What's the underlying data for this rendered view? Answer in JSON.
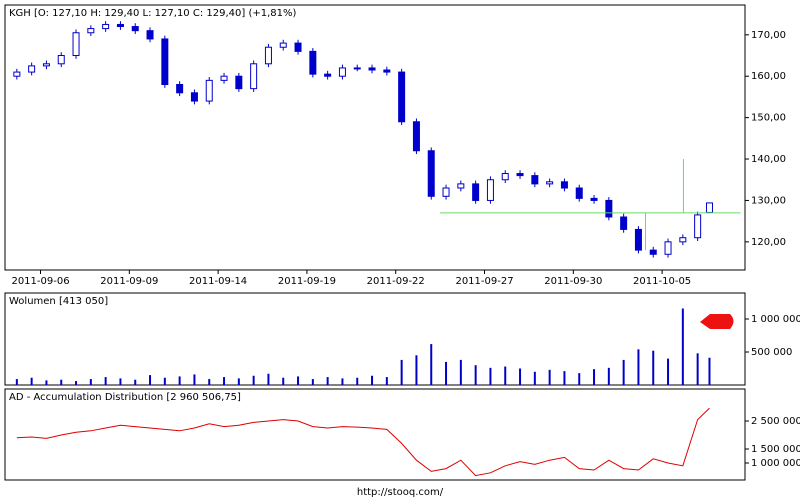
{
  "chart_data": [
    {
      "type": "candlestick",
      "title": "KGH [O: 127,10  H: 129,40  L: 127,10  C: 129,40]  (+1,81%)",
      "color": "#0000cc",
      "x": [
        -0.8,
        -0.3,
        0.2,
        0.7,
        1.2,
        1.7,
        2.2,
        2.7,
        3.2,
        3.7,
        4.2,
        4.7,
        5.2,
        5.7,
        6.2,
        6.7,
        7.2,
        7.7,
        8.2,
        8.7,
        9.2,
        9.7,
        10.2,
        10.7,
        11.2,
        11.7,
        12.2,
        12.7,
        13.2,
        13.7,
        14.2,
        14.7,
        15.2,
        15.7,
        16.2,
        16.7,
        17.2,
        17.7,
        18.2,
        18.7,
        19.2,
        19.7,
        20.2,
        20.7,
        21.2,
        21.7,
        22.2,
        22.6
      ],
      "open": [
        160,
        161,
        162.5,
        163,
        165,
        170.5,
        171.5,
        172.5,
        172,
        171,
        169,
        158,
        156,
        154,
        159,
        160,
        157,
        163,
        167,
        168,
        166,
        160.5,
        160,
        162,
        162,
        161.5,
        161,
        149,
        142,
        131,
        133,
        134,
        130,
        135,
        136.5,
        136,
        134,
        134.5,
        133,
        130.5,
        130,
        126,
        123,
        118,
        117,
        120,
        121,
        127.1
      ],
      "high": [
        161.8,
        163.3,
        163.8,
        165.8,
        171.3,
        172.3,
        173.3,
        173.3,
        172.8,
        171.8,
        169.8,
        158.8,
        156.8,
        159.8,
        160.8,
        160.8,
        163.8,
        167.8,
        168.8,
        168.8,
        166.8,
        161.3,
        162.8,
        162.8,
        162.8,
        162.3,
        161.8,
        149.8,
        142.8,
        133.8,
        134.8,
        134.8,
        135.8,
        137.3,
        137.3,
        136.8,
        135.3,
        135.3,
        133.8,
        131.3,
        130.8,
        126.8,
        123.8,
        118.8,
        120.8,
        121.8,
        127.3,
        129.4
      ],
      "low": [
        159.2,
        160.2,
        161.7,
        162.2,
        164.2,
        169.7,
        170.7,
        171.2,
        170.2,
        168.2,
        157.2,
        155.2,
        153.2,
        153.2,
        158.2,
        156.2,
        156.2,
        162.2,
        166.2,
        165.2,
        159.7,
        159.2,
        159.2,
        161.2,
        160.7,
        160.2,
        148.2,
        141.2,
        130.2,
        130.2,
        132.2,
        129.2,
        129.2,
        134.2,
        135.2,
        133.2,
        133.2,
        132.2,
        129.7,
        129.2,
        125.2,
        122.2,
        117.2,
        116.2,
        116.2,
        119.2,
        120.2,
        127.1
      ],
      "close": [
        161,
        162.5,
        163,
        165,
        170.5,
        171.5,
        172.5,
        172,
        171,
        169,
        158,
        156,
        154,
        159,
        160,
        157,
        163,
        167,
        168,
        166,
        160.5,
        160,
        162,
        162,
        161.5,
        161,
        149,
        142,
        131,
        133,
        134,
        130,
        135,
        136.5,
        136,
        134,
        134.5,
        133,
        130.5,
        130,
        126,
        123,
        118,
        117,
        120,
        121,
        126.5,
        129.4
      ],
      "xlim": [
        -1.2,
        23.8
      ],
      "xticks": [
        {
          "value": 0,
          "label": "2011-09-06"
        },
        {
          "value": 3,
          "label": "2011-09-09"
        },
        {
          "value": 6,
          "label": "2011-09-14"
        },
        {
          "value": 9,
          "label": "2011-09-19"
        },
        {
          "value": 12,
          "label": "2011-09-22"
        },
        {
          "value": 15,
          "label": "2011-09-27"
        },
        {
          "value": 18,
          "label": "2011-09-30"
        },
        {
          "value": 21,
          "label": "2011-10-05"
        }
      ],
      "ylim": [
        113.2,
        177.2
      ],
      "yticks": [
        {
          "value": 120,
          "label": "120,00"
        },
        {
          "value": 130,
          "label": "130,00"
        },
        {
          "value": 140,
          "label": "140,00"
        },
        {
          "value": 150,
          "label": "150,00"
        },
        {
          "value": 160,
          "label": "160,00"
        },
        {
          "value": 170,
          "label": "170,00"
        }
      ],
      "lines_color": "#66dd66",
      "lines": [
        {
          "x": [
            13.5,
            23.65
          ],
          "y": [
            127,
            127
          ]
        },
        {
          "x": [
            21.72,
            21.72
          ],
          "y": [
            127,
            140
          ]
        },
        {
          "x": [
            20.44,
            20.44
          ],
          "y": [
            127,
            118
          ]
        }
      ]
    },
    {
      "type": "bar",
      "title": "Wolumen [413 050]",
      "color": "#0000cc",
      "x": [
        -0.8,
        -0.3,
        0.2,
        0.7,
        1.2,
        1.7,
        2.2,
        2.7,
        3.2,
        3.7,
        4.2,
        4.7,
        5.2,
        5.7,
        6.2,
        6.7,
        7.2,
        7.7,
        8.2,
        8.7,
        9.2,
        9.7,
        10.2,
        10.7,
        11.2,
        11.7,
        12.2,
        12.7,
        13.2,
        13.7,
        14.2,
        14.7,
        15.2,
        15.7,
        16.2,
        16.7,
        17.2,
        17.7,
        18.2,
        18.7,
        19.2,
        19.7,
        20.2,
        20.7,
        21.2,
        21.7,
        22.2,
        22.6
      ],
      "values": [
        90000,
        110000,
        70000,
        80000,
        60000,
        90000,
        120000,
        100000,
        80000,
        150000,
        110000,
        130000,
        160000,
        90000,
        120000,
        100000,
        140000,
        170000,
        110000,
        130000,
        90000,
        120000,
        100000,
        110000,
        140000,
        120000,
        380000,
        450000,
        620000,
        350000,
        380000,
        300000,
        260000,
        280000,
        250000,
        200000,
        230000,
        210000,
        180000,
        240000,
        260000,
        380000,
        540000,
        520000,
        400000,
        1160000,
        480000,
        413050
      ],
      "xlim": [
        -1.2,
        23.8
      ],
      "ylim": [
        0,
        1394000
      ],
      "yticks": [
        {
          "value": 500000,
          "label": "500 000"
        },
        {
          "value": 1000000,
          "label": "1 000 000"
        }
      ]
    },
    {
      "type": "line",
      "title": "AD - Accumulation Distribution [2 960 506,75]",
      "color": "#dd0000",
      "x": [
        -0.8,
        -0.3,
        0.2,
        0.7,
        1.2,
        1.7,
        2.2,
        2.7,
        3.2,
        3.7,
        4.2,
        4.7,
        5.2,
        5.7,
        6.2,
        6.7,
        7.2,
        7.7,
        8.2,
        8.7,
        9.2,
        9.7,
        10.2,
        10.7,
        11.2,
        11.7,
        12.2,
        12.7,
        13.2,
        13.7,
        14.2,
        14.7,
        15.2,
        15.7,
        16.2,
        16.7,
        17.2,
        17.7,
        18.2,
        18.7,
        19.2,
        19.7,
        20.2,
        20.7,
        21.2,
        21.7,
        22.2,
        22.6
      ],
      "values": [
        1900000,
        1930000,
        1880000,
        2000000,
        2100000,
        2150000,
        2250000,
        2350000,
        2300000,
        2250000,
        2200000,
        2150000,
        2250000,
        2400000,
        2300000,
        2350000,
        2450000,
        2500000,
        2550000,
        2500000,
        2300000,
        2250000,
        2300000,
        2280000,
        2250000,
        2200000,
        1700000,
        1100000,
        700000,
        800000,
        1100000,
        550000,
        650000,
        900000,
        1050000,
        950000,
        1100000,
        1200000,
        800000,
        750000,
        1100000,
        800000,
        750000,
        1150000,
        1000000,
        900000,
        2550000,
        2960506.75
      ],
      "xlim": [
        -1.2,
        23.8
      ],
      "ylim": [
        393000,
        3643000
      ],
      "yticks": [
        {
          "value": 1000000,
          "label": "1 000 000"
        },
        {
          "value": 1500000,
          "label": "1 500 000"
        },
        {
          "value": 2500000,
          "label": "2 500 000"
        }
      ]
    }
  ],
  "footer": "http://stooq.com/"
}
